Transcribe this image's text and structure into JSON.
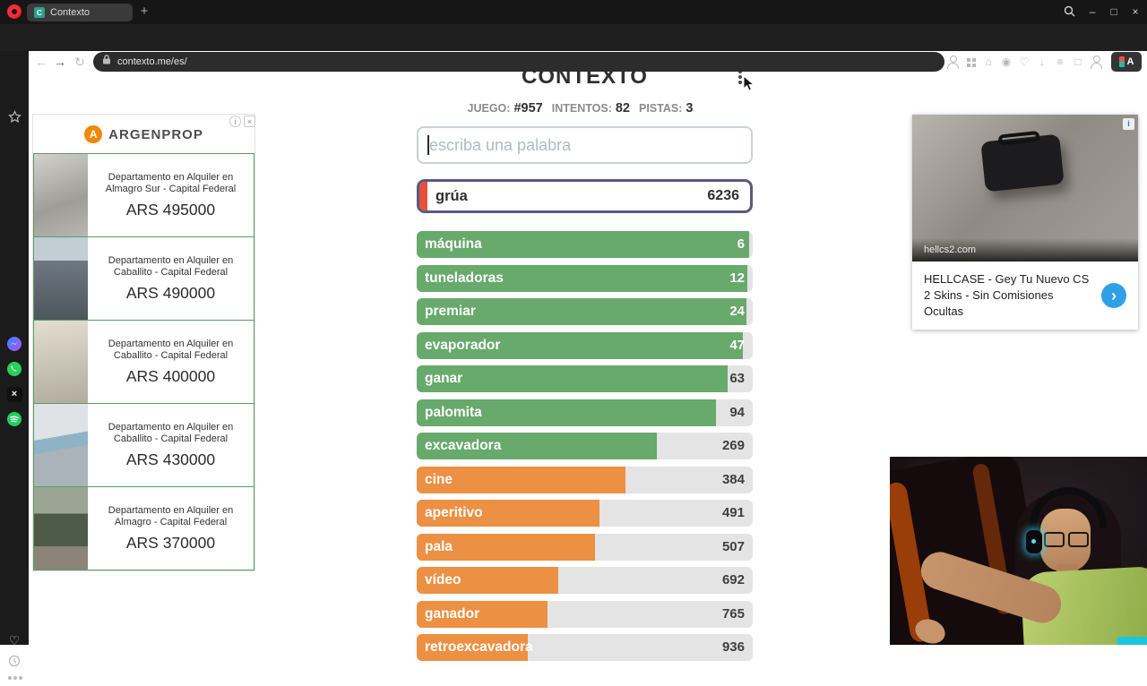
{
  "browser": {
    "tab_title": "Contexto",
    "url": "contexto.me/es/",
    "profile_label": "A"
  },
  "icons": {
    "favicon_letter": "C",
    "plus": "+",
    "minimize": "–",
    "maximize": "□",
    "close": "×",
    "back": "←",
    "forward": "→",
    "reload": "↻",
    "home": "⌂",
    "eye": "◉",
    "heart": "♡",
    "download": "↓",
    "list": "≡",
    "square": "□",
    "x_logo": "×",
    "chevron_right": "›",
    "info": "i",
    "close_small": "×",
    "adchoices": "i"
  },
  "game": {
    "title": "CONTEXTO",
    "stats": {
      "game_label": "JUEGO:",
      "game_value": "#957",
      "attempts_label": "INTENTOS:",
      "attempts_value": "82",
      "hints_label": "PISTAS:",
      "hints_value": "3"
    },
    "input_placeholder": "escriba una palabra",
    "last_guess": {
      "word": "grúa",
      "rank": "6236"
    },
    "guesses": [
      {
        "word": "máquina",
        "rank": 6,
        "pct": 99,
        "color": "green"
      },
      {
        "word": "tuneladoras",
        "rank": 12,
        "pct": 98.5,
        "color": "green"
      },
      {
        "word": "premiar",
        "rank": 24,
        "pct": 98,
        "color": "green"
      },
      {
        "word": "evaporador",
        "rank": 47,
        "pct": 97,
        "color": "green"
      },
      {
        "word": "ganar",
        "rank": 63,
        "pct": 92.5,
        "color": "green"
      },
      {
        "word": "palomita",
        "rank": 94,
        "pct": 89,
        "color": "green"
      },
      {
        "word": "excavadora",
        "rank": 269,
        "pct": 71.5,
        "color": "green"
      },
      {
        "word": "cine",
        "rank": 384,
        "pct": 62,
        "color": "orange"
      },
      {
        "word": "aperitivo",
        "rank": 491,
        "pct": 54.5,
        "color": "orange"
      },
      {
        "word": "pala",
        "rank": 507,
        "pct": 53,
        "color": "orange"
      },
      {
        "word": "vídeo",
        "rank": 692,
        "pct": 42,
        "color": "orange"
      },
      {
        "word": "ganador",
        "rank": 765,
        "pct": 39,
        "color": "orange"
      },
      {
        "word": "retroexcavadora",
        "rank": 936,
        "pct": 33,
        "color": "orange"
      }
    ]
  },
  "ads": {
    "argenprop": {
      "brand": "ARGENPROP",
      "brand_initial": "A",
      "listings": [
        {
          "desc": "Departamento en Alquiler en Almagro Sur - Capital Federal",
          "price": "ARS 495000"
        },
        {
          "desc": "Departamento en Alquiler en Caballito - Capital Federal",
          "price": "ARS 490000"
        },
        {
          "desc": "Departamento en Alquiler en Caballito - Capital Federal",
          "price": "ARS 400000"
        },
        {
          "desc": "Departamento en Alquiler en Caballito - Capital Federal",
          "price": "ARS 430000"
        },
        {
          "desc": "Departamento en Alquiler en Almagro - Capital Federal",
          "price": "ARS 370000"
        }
      ]
    },
    "hellcase": {
      "domain": "hellcs2.com",
      "text": "HELLCASE - Gey Tu Nuevo CS 2 Skins - Sin Comisiones Ocultas"
    }
  },
  "colors": {
    "green": "#68a96c",
    "orange": "#ec9043",
    "red": "#e8503a",
    "accent_blue": "#2f9fe8"
  }
}
